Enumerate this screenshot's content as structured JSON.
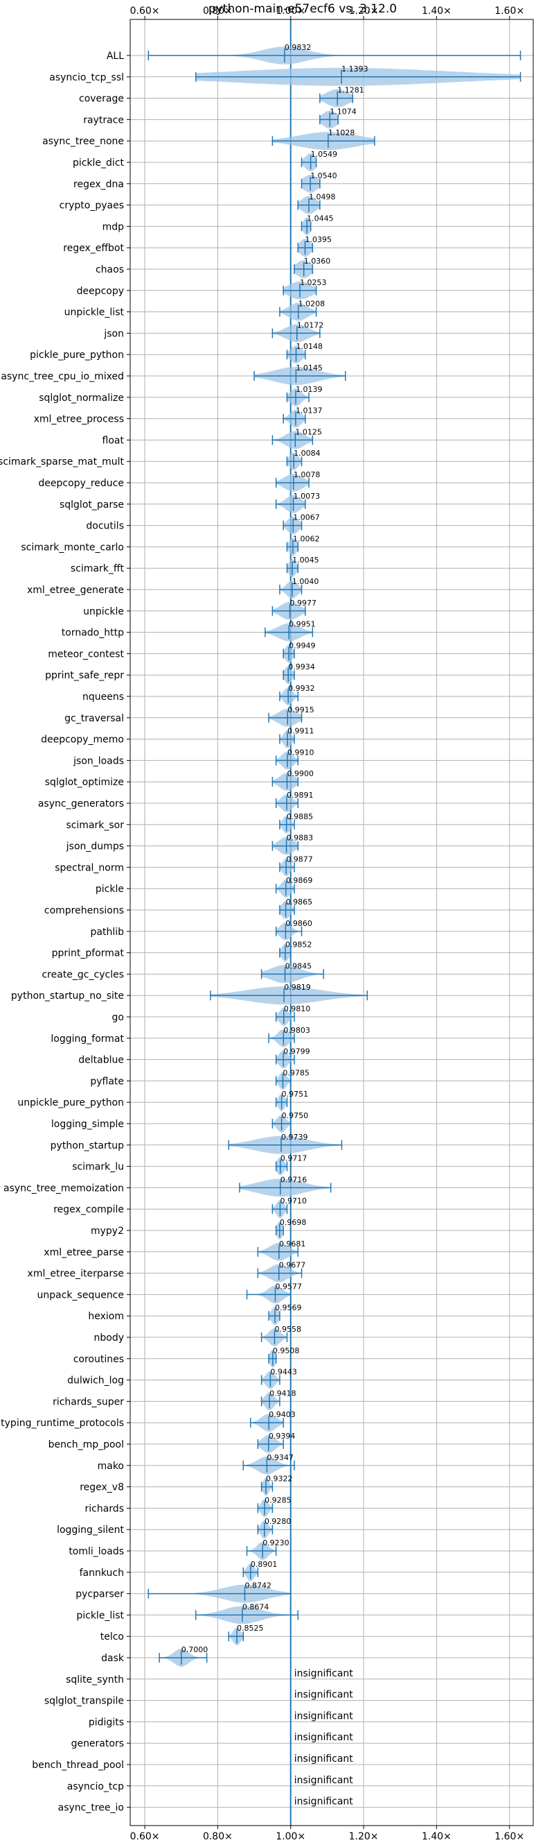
{
  "chart_data": {
    "type": "violin",
    "title": "python-main-e57ecf6 vs. 3.12.0",
    "orientation": "horizontal",
    "xlim": [
      0.56,
      1.665
    ],
    "xticks": [
      0.6,
      0.8,
      1.0,
      1.2,
      1.4,
      1.6
    ],
    "xtick_labels": [
      "0.60×",
      "0.80×",
      "1.00×",
      "1.20×",
      "1.40×",
      "1.60×"
    ],
    "grid": true,
    "reference_x": 1.0,
    "insignificant_label": "insignificant",
    "benchmarks": [
      {
        "name": "ALL",
        "label": "0.9832",
        "value": 0.9832,
        "min": 0.61,
        "max": 1.63,
        "spread": 0.06
      },
      {
        "name": "asyncio_tcp_ssl",
        "label": "1.1393",
        "value": 1.1393,
        "min": 0.74,
        "max": 1.63,
        "spread": 0.3
      },
      {
        "name": "coverage",
        "label": "1.1281",
        "value": 1.1281,
        "min": 1.08,
        "max": 1.17,
        "spread": 0.03
      },
      {
        "name": "raytrace",
        "label": "1.1074",
        "value": 1.1074,
        "min": 1.08,
        "max": 1.13,
        "spread": 0.02
      },
      {
        "name": "async_tree_none",
        "label": "1.1028",
        "value": 1.1028,
        "min": 0.95,
        "max": 1.23,
        "spread": 0.08
      },
      {
        "name": "pickle_dict",
        "label": "1.0549",
        "value": 1.0549,
        "min": 1.03,
        "max": 1.07,
        "spread": 0.015
      },
      {
        "name": "regex_dna",
        "label": "1.0540",
        "value": 1.054,
        "min": 1.03,
        "max": 1.08,
        "spread": 0.02
      },
      {
        "name": "crypto_pyaes",
        "label": "1.0498",
        "value": 1.0498,
        "min": 1.02,
        "max": 1.08,
        "spread": 0.02
      },
      {
        "name": "mdp",
        "label": "1.0445",
        "value": 1.0445,
        "min": 1.03,
        "max": 1.055,
        "spread": 0.01
      },
      {
        "name": "regex_effbot",
        "label": "1.0395",
        "value": 1.0395,
        "min": 1.02,
        "max": 1.06,
        "spread": 0.015
      },
      {
        "name": "chaos",
        "label": "1.0360",
        "value": 1.036,
        "min": 1.01,
        "max": 1.06,
        "spread": 0.02
      },
      {
        "name": "deepcopy",
        "label": "1.0253",
        "value": 1.0253,
        "min": 0.98,
        "max": 1.07,
        "spread": 0.03
      },
      {
        "name": "unpickle_list",
        "label": "1.0208",
        "value": 1.0208,
        "min": 0.97,
        "max": 1.07,
        "spread": 0.025
      },
      {
        "name": "json",
        "label": "1.0172",
        "value": 1.0172,
        "min": 0.95,
        "max": 1.08,
        "spread": 0.03
      },
      {
        "name": "pickle_pure_python",
        "label": "1.0148",
        "value": 1.0148,
        "min": 0.99,
        "max": 1.04,
        "spread": 0.015
      },
      {
        "name": "async_tree_cpu_io_mixed",
        "label": "1.0145",
        "value": 1.0145,
        "min": 0.9,
        "max": 1.15,
        "spread": 0.06
      },
      {
        "name": "sqlglot_normalize",
        "label": "1.0139",
        "value": 1.0139,
        "min": 0.99,
        "max": 1.05,
        "spread": 0.015
      },
      {
        "name": "xml_etree_process",
        "label": "1.0137",
        "value": 1.0137,
        "min": 0.98,
        "max": 1.04,
        "spread": 0.015
      },
      {
        "name": "float",
        "label": "1.0125",
        "value": 1.0125,
        "min": 0.95,
        "max": 1.06,
        "spread": 0.025
      },
      {
        "name": "scimark_sparse_mat_mult",
        "label": "1.0084",
        "value": 1.0084,
        "min": 0.99,
        "max": 1.03,
        "spread": 0.012
      },
      {
        "name": "deepcopy_reduce",
        "label": "1.0078",
        "value": 1.0078,
        "min": 0.96,
        "max": 1.05,
        "spread": 0.025
      },
      {
        "name": "sqlglot_parse",
        "label": "1.0073",
        "value": 1.0073,
        "min": 0.96,
        "max": 1.04,
        "spread": 0.02
      },
      {
        "name": "docutils",
        "label": "1.0067",
        "value": 1.0067,
        "min": 0.98,
        "max": 1.03,
        "spread": 0.015
      },
      {
        "name": "scimark_monte_carlo",
        "label": "1.0062",
        "value": 1.0062,
        "min": 0.99,
        "max": 1.02,
        "spread": 0.01
      },
      {
        "name": "scimark_fft",
        "label": "1.0045",
        "value": 1.0045,
        "min": 0.99,
        "max": 1.02,
        "spread": 0.01
      },
      {
        "name": "xml_etree_generate",
        "label": "1.0040",
        "value": 1.004,
        "min": 0.97,
        "max": 1.03,
        "spread": 0.015
      },
      {
        "name": "unpickle",
        "label": "0.9977",
        "value": 0.9977,
        "min": 0.95,
        "max": 1.04,
        "spread": 0.025
      },
      {
        "name": "tornado_http",
        "label": "0.9951",
        "value": 0.9951,
        "min": 0.93,
        "max": 1.06,
        "spread": 0.03
      },
      {
        "name": "meteor_contest",
        "label": "0.9949",
        "value": 0.9949,
        "min": 0.98,
        "max": 1.01,
        "spread": 0.01
      },
      {
        "name": "pprint_safe_repr",
        "label": "0.9934",
        "value": 0.9934,
        "min": 0.98,
        "max": 1.01,
        "spread": 0.01
      },
      {
        "name": "nqueens",
        "label": "0.9932",
        "value": 0.9932,
        "min": 0.97,
        "max": 1.02,
        "spread": 0.012
      },
      {
        "name": "gc_traversal",
        "label": "0.9915",
        "value": 0.9915,
        "min": 0.94,
        "max": 1.03,
        "spread": 0.025
      },
      {
        "name": "deepcopy_memo",
        "label": "0.9911",
        "value": 0.9911,
        "min": 0.97,
        "max": 1.01,
        "spread": 0.01
      },
      {
        "name": "json_loads",
        "label": "0.9910",
        "value": 0.991,
        "min": 0.96,
        "max": 1.02,
        "spread": 0.015
      },
      {
        "name": "sqlglot_optimize",
        "label": "0.9900",
        "value": 0.99,
        "min": 0.95,
        "max": 1.02,
        "spread": 0.02
      },
      {
        "name": "async_generators",
        "label": "0.9891",
        "value": 0.9891,
        "min": 0.96,
        "max": 1.02,
        "spread": 0.015
      },
      {
        "name": "scimark_sor",
        "label": "0.9885",
        "value": 0.9885,
        "min": 0.97,
        "max": 1.01,
        "spread": 0.01
      },
      {
        "name": "json_dumps",
        "label": "0.9883",
        "value": 0.9883,
        "min": 0.95,
        "max": 1.02,
        "spread": 0.02
      },
      {
        "name": "spectral_norm",
        "label": "0.9877",
        "value": 0.9877,
        "min": 0.97,
        "max": 1.01,
        "spread": 0.01
      },
      {
        "name": "pickle",
        "label": "0.9869",
        "value": 0.9869,
        "min": 0.96,
        "max": 1.01,
        "spread": 0.012
      },
      {
        "name": "comprehensions",
        "label": "0.9865",
        "value": 0.9865,
        "min": 0.97,
        "max": 1.01,
        "spread": 0.012
      },
      {
        "name": "pathlib",
        "label": "0.9860",
        "value": 0.986,
        "min": 0.96,
        "max": 1.03,
        "spread": 0.015
      },
      {
        "name": "pprint_pformat",
        "label": "0.9852",
        "value": 0.9852,
        "min": 0.97,
        "max": 1.0,
        "spread": 0.01
      },
      {
        "name": "create_gc_cycles",
        "label": "0.9845",
        "value": 0.9845,
        "min": 0.92,
        "max": 1.09,
        "spread": 0.04
      },
      {
        "name": "python_startup_no_site",
        "label": "0.9819",
        "value": 0.9819,
        "min": 0.78,
        "max": 1.21,
        "spread": 0.1
      },
      {
        "name": "go",
        "label": "0.9810",
        "value": 0.981,
        "min": 0.96,
        "max": 1.01,
        "spread": 0.012
      },
      {
        "name": "logging_format",
        "label": "0.9803",
        "value": 0.9803,
        "min": 0.94,
        "max": 1.01,
        "spread": 0.015
      },
      {
        "name": "deltablue",
        "label": "0.9799",
        "value": 0.9799,
        "min": 0.96,
        "max": 1.01,
        "spread": 0.012
      },
      {
        "name": "pyflate",
        "label": "0.9785",
        "value": 0.9785,
        "min": 0.96,
        "max": 1.0,
        "spread": 0.01
      },
      {
        "name": "unpickle_pure_python",
        "label": "0.9751",
        "value": 0.9751,
        "min": 0.96,
        "max": 0.99,
        "spread": 0.008
      },
      {
        "name": "logging_simple",
        "label": "0.9750",
        "value": 0.975,
        "min": 0.95,
        "max": 1.0,
        "spread": 0.012
      },
      {
        "name": "python_startup",
        "label": "0.9739",
        "value": 0.9739,
        "min": 0.83,
        "max": 1.14,
        "spread": 0.07
      },
      {
        "name": "scimark_lu",
        "label": "0.9717",
        "value": 0.9717,
        "min": 0.96,
        "max": 0.99,
        "spread": 0.01
      },
      {
        "name": "async_tree_memoization",
        "label": "0.9716",
        "value": 0.9716,
        "min": 0.86,
        "max": 1.11,
        "spread": 0.06
      },
      {
        "name": "regex_compile",
        "label": "0.9710",
        "value": 0.971,
        "min": 0.95,
        "max": 0.99,
        "spread": 0.01
      },
      {
        "name": "mypy2",
        "label": "0.9698",
        "value": 0.9698,
        "min": 0.96,
        "max": 0.98,
        "spread": 0.008
      },
      {
        "name": "xml_etree_parse",
        "label": "0.9681",
        "value": 0.9681,
        "min": 0.91,
        "max": 1.02,
        "spread": 0.025
      },
      {
        "name": "xml_etree_iterparse",
        "label": "0.9677",
        "value": 0.9677,
        "min": 0.91,
        "max": 1.03,
        "spread": 0.025
      },
      {
        "name": "unpack_sequence",
        "label": "0.9577",
        "value": 0.9577,
        "min": 0.88,
        "max": 1.0,
        "spread": 0.02
      },
      {
        "name": "hexiom",
        "label": "0.9569",
        "value": 0.9569,
        "min": 0.94,
        "max": 0.97,
        "spread": 0.01
      },
      {
        "name": "nbody",
        "label": "0.9558",
        "value": 0.9558,
        "min": 0.92,
        "max": 0.99,
        "spread": 0.015
      },
      {
        "name": "coroutines",
        "label": "0.9508",
        "value": 0.9508,
        "min": 0.94,
        "max": 0.96,
        "spread": 0.008
      },
      {
        "name": "dulwich_log",
        "label": "0.9443",
        "value": 0.9443,
        "min": 0.92,
        "max": 0.97,
        "spread": 0.012
      },
      {
        "name": "richards_super",
        "label": "0.9418",
        "value": 0.9418,
        "min": 0.92,
        "max": 0.97,
        "spread": 0.012
      },
      {
        "name": "typing_runtime_protocols",
        "label": "0.9403",
        "value": 0.9403,
        "min": 0.89,
        "max": 0.98,
        "spread": 0.02
      },
      {
        "name": "bench_mp_pool",
        "label": "0.9394",
        "value": 0.9394,
        "min": 0.91,
        "max": 0.98,
        "spread": 0.018
      },
      {
        "name": "mako",
        "label": "0.9347",
        "value": 0.9347,
        "min": 0.87,
        "max": 1.01,
        "spread": 0.025
      },
      {
        "name": "regex_v8",
        "label": "0.9322",
        "value": 0.9322,
        "min": 0.92,
        "max": 0.95,
        "spread": 0.008
      },
      {
        "name": "richards",
        "label": "0.9285",
        "value": 0.9285,
        "min": 0.91,
        "max": 0.95,
        "spread": 0.01
      },
      {
        "name": "logging_silent",
        "label": "0.9280",
        "value": 0.928,
        "min": 0.91,
        "max": 0.95,
        "spread": 0.01
      },
      {
        "name": "tomli_loads",
        "label": "0.9230",
        "value": 0.923,
        "min": 0.88,
        "max": 0.96,
        "spread": 0.015
      },
      {
        "name": "fannkuch",
        "label": "0.8901",
        "value": 0.8901,
        "min": 0.87,
        "max": 0.91,
        "spread": 0.01
      },
      {
        "name": "pycparser",
        "label": "0.8742",
        "value": 0.8742,
        "min": 0.61,
        "max": 1.0,
        "spread": 0.06
      },
      {
        "name": "pickle_list",
        "label": "0.8674",
        "value": 0.8674,
        "min": 0.74,
        "max": 1.02,
        "spread": 0.05
      },
      {
        "name": "telco",
        "label": "0.8525",
        "value": 0.8525,
        "min": 0.83,
        "max": 0.87,
        "spread": 0.01
      },
      {
        "name": "dask",
        "label": "0.7000",
        "value": 0.7,
        "min": 0.64,
        "max": 0.77,
        "spread": 0.02
      },
      {
        "name": "sqlite_synth",
        "label": "insignificant",
        "value": null
      },
      {
        "name": "sqlglot_transpile",
        "label": "insignificant",
        "value": null
      },
      {
        "name": "pidigits",
        "label": "insignificant",
        "value": null
      },
      {
        "name": "generators",
        "label": "insignificant",
        "value": null
      },
      {
        "name": "bench_thread_pool",
        "label": "insignificant",
        "value": null
      },
      {
        "name": "asyncio_tcp",
        "label": "insignificant",
        "value": null
      },
      {
        "name": "async_tree_io",
        "label": "insignificant",
        "value": null
      }
    ],
    "colors": {
      "violin": "#9fc4e5",
      "line": "#1f77b4",
      "grid": "#b0b0b0",
      "axis": "#000000"
    }
  }
}
